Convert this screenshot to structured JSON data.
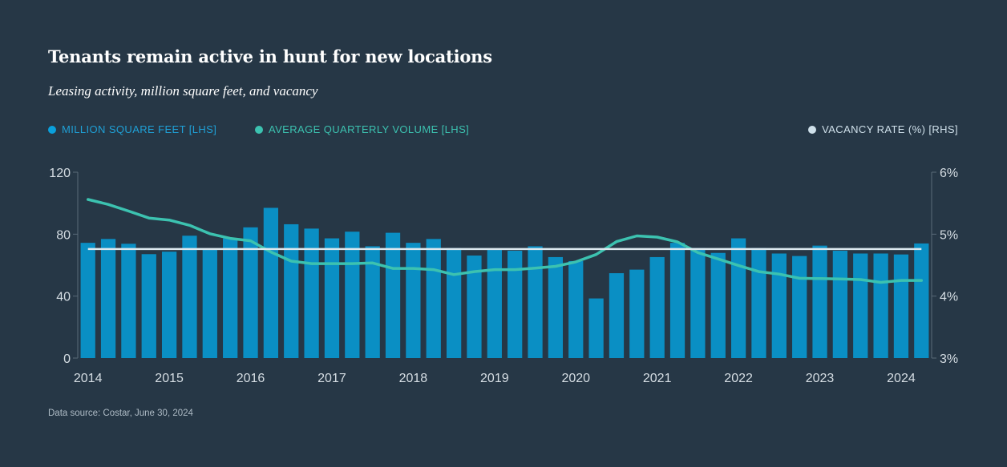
{
  "title": "Tenants remain active in hunt for new locations",
  "subtitle": "Leasing activity, million square feet, and vacancy",
  "legend": [
    {
      "label": "MILLION SQUARE FEET [LHS]",
      "color": "#0aa0dc"
    },
    {
      "label": "AVERAGE QUARTERLY VOLUME [LHS]",
      "color": "#3cc2b0"
    },
    {
      "label": "VACANCY RATE (%) [RHS]",
      "color": "#cfe0ea"
    }
  ],
  "source": "Data source: Costar, June 30, 2024",
  "chart_data": {
    "type": "bar",
    "x": [
      "2014Q1",
      "2014Q2",
      "2014Q3",
      "2014Q4",
      "2015Q1",
      "2015Q2",
      "2015Q3",
      "2015Q4",
      "2016Q1",
      "2016Q2",
      "2016Q3",
      "2016Q4",
      "2017Q1",
      "2017Q2",
      "2017Q3",
      "2017Q4",
      "2018Q1",
      "2018Q2",
      "2018Q3",
      "2018Q4",
      "2019Q1",
      "2019Q2",
      "2019Q3",
      "2019Q4",
      "2020Q1",
      "2020Q2",
      "2020Q3",
      "2020Q4",
      "2021Q1",
      "2021Q2",
      "2021Q3",
      "2021Q4",
      "2022Q1",
      "2022Q2",
      "2022Q3",
      "2022Q4",
      "2023Q1",
      "2023Q2",
      "2023Q3",
      "2023Q4",
      "2024Q1",
      "2024Q2"
    ],
    "series": [
      {
        "name": "MILLION SQUARE FEET [LHS]",
        "axis": "left",
        "type": "bar",
        "values": [
          74.4,
          76.9,
          73.8,
          67.1,
          68.7,
          79.0,
          70.0,
          77.3,
          84.4,
          97.0,
          86.4,
          83.6,
          77.3,
          81.6,
          72.2,
          80.9,
          74.4,
          76.9,
          71.0,
          66.2,
          69.8,
          69.3,
          72.2,
          65.2,
          62.6,
          38.5,
          54.8,
          57.1,
          65.2,
          74.4,
          71.0,
          67.9,
          77.3,
          71.0,
          67.5,
          65.9,
          72.6,
          69.3,
          67.5,
          67.5,
          66.9,
          74.0
        ]
      },
      {
        "name": "AVERAGE QUARTERLY VOLUME [LHS]",
        "axis": "left",
        "type": "line",
        "values": [
          102.4,
          99.2,
          94.9,
          90.4,
          89.1,
          85.7,
          80.3,
          77.3,
          75.7,
          68.5,
          62.6,
          61.0,
          61.0,
          61.0,
          61.4,
          57.9,
          57.9,
          57.1,
          53.9,
          55.8,
          57.1,
          57.1,
          58.1,
          59.2,
          62.1,
          66.9,
          75.2,
          78.9,
          78.1,
          75.0,
          68.1,
          64.0,
          59.8,
          55.8,
          54.2,
          51.5,
          51.3,
          51.1,
          50.7,
          48.9,
          50.1,
          50.1
        ]
      },
      {
        "name": "VACANCY RATE (%) [RHS]",
        "axis": "right",
        "type": "line",
        "values": [
          4.76,
          4.76,
          4.76,
          4.76,
          4.76,
          4.76,
          4.76,
          4.76,
          4.76,
          4.76,
          4.76,
          4.76,
          4.76,
          4.76,
          4.76,
          4.76,
          4.76,
          4.76,
          4.76,
          4.76,
          4.76,
          4.76,
          4.76,
          4.76,
          4.76,
          4.76,
          4.76,
          4.76,
          4.76,
          4.76,
          4.76,
          4.76,
          4.76,
          4.76,
          4.76,
          4.76,
          4.76,
          4.76,
          4.76,
          4.76,
          4.76,
          4.76
        ]
      }
    ],
    "year_labels": [
      "2014",
      "2015",
      "2016",
      "2017",
      "2018",
      "2019",
      "2020",
      "2021",
      "2022",
      "2023",
      "2024"
    ],
    "left_axis": {
      "ticks": [
        "120",
        "80",
        "40",
        "0"
      ],
      "tick_values": [
        120,
        80,
        40,
        0
      ],
      "ylim": [
        0,
        120
      ]
    },
    "right_axis": {
      "ticks": [
        "6%",
        "5%",
        "4%",
        "3%"
      ],
      "tick_values": [
        6,
        5,
        4,
        3
      ],
      "ylim": [
        3,
        6
      ]
    },
    "grid": false,
    "legend_position": "top"
  }
}
